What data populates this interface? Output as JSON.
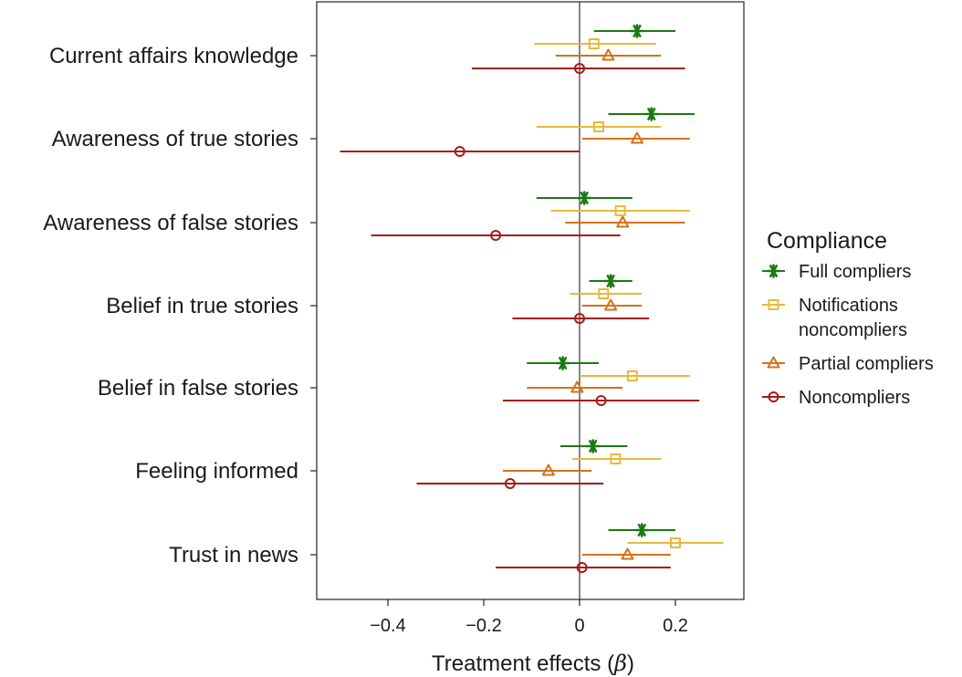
{
  "chart_data": {
    "type": "scatter",
    "subtype": "coefficient-plot",
    "categories": [
      "Current affairs knowledge",
      "Awareness of true stories",
      "Awareness of false stories",
      "Belief in true stories",
      "Belief in false stories",
      "Feeling informed",
      "Trust in news"
    ],
    "xlabel": "Treatment effects (",
    "xlabel_symbol": "β",
    "xlabel_close": ")",
    "xlim": [
      -0.55,
      0.34
    ],
    "xticks": [
      -0.4,
      -0.2,
      0,
      0.2
    ],
    "xtick_labels": [
      "−0.4",
      "−0.2",
      "0",
      "0.2"
    ],
    "reference_line_x": 0,
    "grid": false,
    "legend": {
      "title": "Compliance",
      "position": "right"
    },
    "series": [
      {
        "name": "Full compliers",
        "label_lines": [
          "Full compliers"
        ],
        "marker": "asterisk",
        "color": "#1a7a12",
        "estimates": [
          0.12,
          0.15,
          0.01,
          0.065,
          -0.035,
          0.028,
          0.13
        ],
        "ci_low": [
          0.03,
          0.06,
          -0.09,
          0.02,
          -0.11,
          -0.04,
          0.06
        ],
        "ci_high": [
          0.2,
          0.24,
          0.11,
          0.11,
          0.04,
          0.1,
          0.2
        ]
      },
      {
        "name": "Notifications noncompliers",
        "label_lines": [
          "Notifications",
          "noncompliers"
        ],
        "marker": "square",
        "color": "#e8b93a",
        "estimates": [
          0.03,
          0.04,
          0.085,
          0.05,
          0.11,
          0.075,
          0.2
        ],
        "ci_low": [
          -0.095,
          -0.09,
          -0.06,
          -0.02,
          0,
          -0.015,
          0.1
        ],
        "ci_high": [
          0.16,
          0.17,
          0.23,
          0.13,
          0.23,
          0.17,
          0.3
        ]
      },
      {
        "name": "Partial compliers",
        "label_lines": [
          "Partial compliers"
        ],
        "marker": "triangle",
        "color": "#d4721a",
        "estimates": [
          0.06,
          0.12,
          0.09,
          0.065,
          -0.005,
          -0.065,
          0.1
        ],
        "ci_low": [
          -0.05,
          0.005,
          -0.03,
          0.005,
          -0.11,
          -0.16,
          0.005
        ],
        "ci_high": [
          0.17,
          0.23,
          0.22,
          0.13,
          0.09,
          0.025,
          0.19
        ]
      },
      {
        "name": "Noncompliers",
        "label_lines": [
          "Noncompliers"
        ],
        "marker": "circle",
        "color": "#a31d16",
        "estimates": [
          0,
          -0.25,
          -0.175,
          0,
          0.045,
          -0.145,
          0.005
        ],
        "ci_low": [
          -0.225,
          -0.5,
          -0.435,
          -0.14,
          -0.16,
          -0.34,
          -0.175
        ],
        "ci_high": [
          0.22,
          0,
          0.085,
          0.145,
          0.25,
          0.05,
          0.19
        ]
      }
    ]
  }
}
